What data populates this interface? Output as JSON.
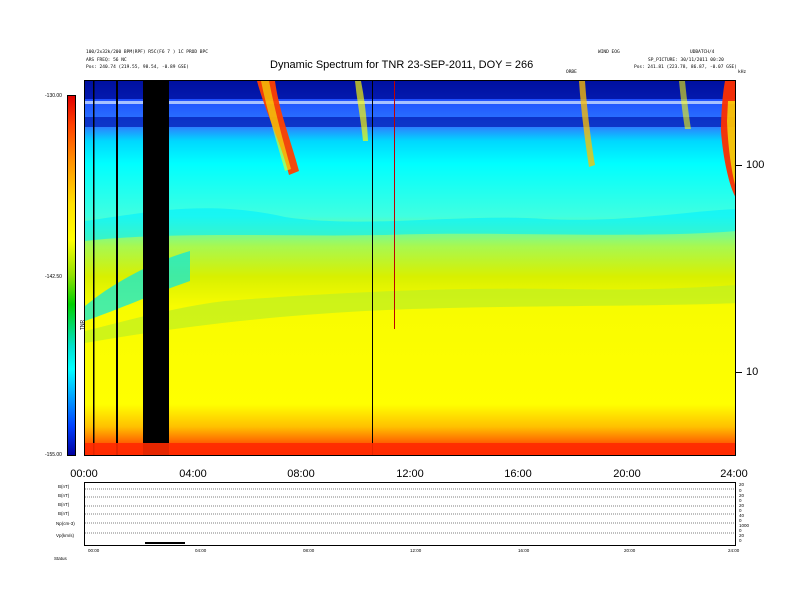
{
  "chart_data": {
    "type": "heatmap",
    "title": "Dynamic Spectrum for TNR 23-SEP-2011, DOY = 266",
    "x_tick_labels": [
      "00:00",
      "04:00",
      "08:00",
      "12:00",
      "16:00",
      "20:00",
      "24:00"
    ],
    "x_range_hours": [
      0,
      24
    ],
    "y_tick_labels": [
      "100",
      "10"
    ],
    "y_scale": "log",
    "colorbar_ticks": [
      "-130.00",
      "-142.50",
      "-155.00"
    ],
    "colorbar_range": [
      -155,
      -130
    ],
    "colorbar_label": "TNR",
    "colors": {
      "bottom_band": "#ff2a00",
      "yellow": "#ffff00",
      "green_yellow": "#c8f000",
      "cyan": "#00ffff",
      "blue": "#1e50ff",
      "navy": "#0010a0",
      "black": "#000000"
    }
  },
  "header": {
    "top_left_line1": "100/2x32k/200 BPM(RPF) R5C(F6 7 ) 1C PROD BPC",
    "top_left_line2": "ARS FREQ: 56 NC",
    "top_left_line3": "Pos:    240.74 (219.55, 98.54, -0.89 GSE)",
    "top_right_line1": "WIND EOG",
    "top_right_line2": "UDBATCH/4",
    "top_right_line3": "SP_PICTURE: 30/11/2011 00:20",
    "top_right_line4": "Pos:   241.81 (223.78, 86.87, -0.07 GSE)",
    "marker_label": "ORBE",
    "corner_label": "kHz"
  },
  "aux_panel": {
    "labels": [
      "B(nT)",
      "B(nT)",
      "B(nT)",
      "B(nT)",
      "Np(cm-3)",
      "Vp(km/s)"
    ],
    "right_labels": [
      "20",
      "0",
      "20",
      "0",
      "20",
      "0",
      "40",
      "0",
      "1000",
      "0",
      "20",
      "0"
    ],
    "x_tick_labels": [
      "00:00",
      "04:00",
      "08:00",
      "12:00",
      "16:00",
      "20:00",
      "24:00"
    ],
    "status_label": "Status"
  }
}
